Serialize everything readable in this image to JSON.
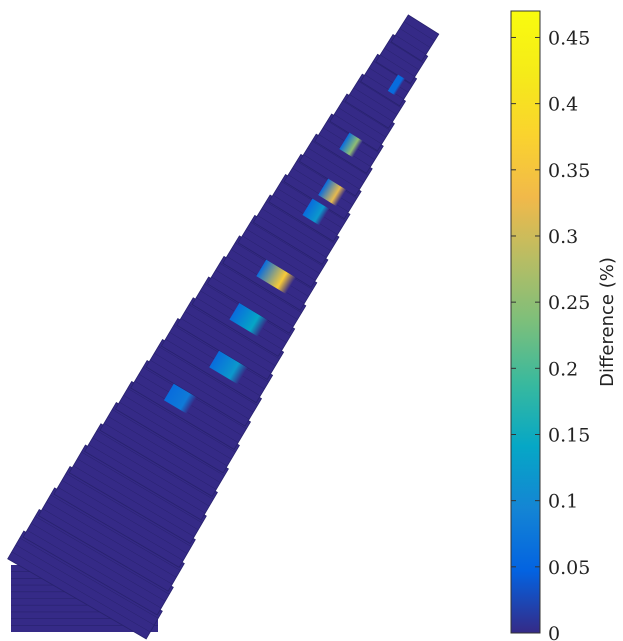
{
  "chart_data": {
    "type": "heatmap",
    "title": "",
    "colorbar": {
      "label": "Difference (%)",
      "colormap": "parula",
      "range": [
        0,
        0.47
      ],
      "ticks": [
        0,
        0.05,
        0.1,
        0.15,
        0.2,
        0.25,
        0.3,
        0.35,
        0.4,
        0.45
      ],
      "tick_labels": [
        "0",
        "0.05",
        "0.1",
        "0.15",
        "0.2",
        "0.25",
        "0.3",
        "0.35",
        "0.4",
        "0.45"
      ]
    },
    "background_value": 0,
    "hotspots": [
      {
        "band": 2,
        "value": 0.06
      },
      {
        "band": 5,
        "value": 0.25
      },
      {
        "band": 6,
        "value": 0.32
      },
      {
        "band": 8,
        "value": 0.12
      },
      {
        "band": 10,
        "value": 0.36
      },
      {
        "band": 11,
        "value": 0.14
      },
      {
        "band": 12,
        "value": 0.12
      },
      {
        "band": 15,
        "value": 0.08
      }
    ]
  }
}
